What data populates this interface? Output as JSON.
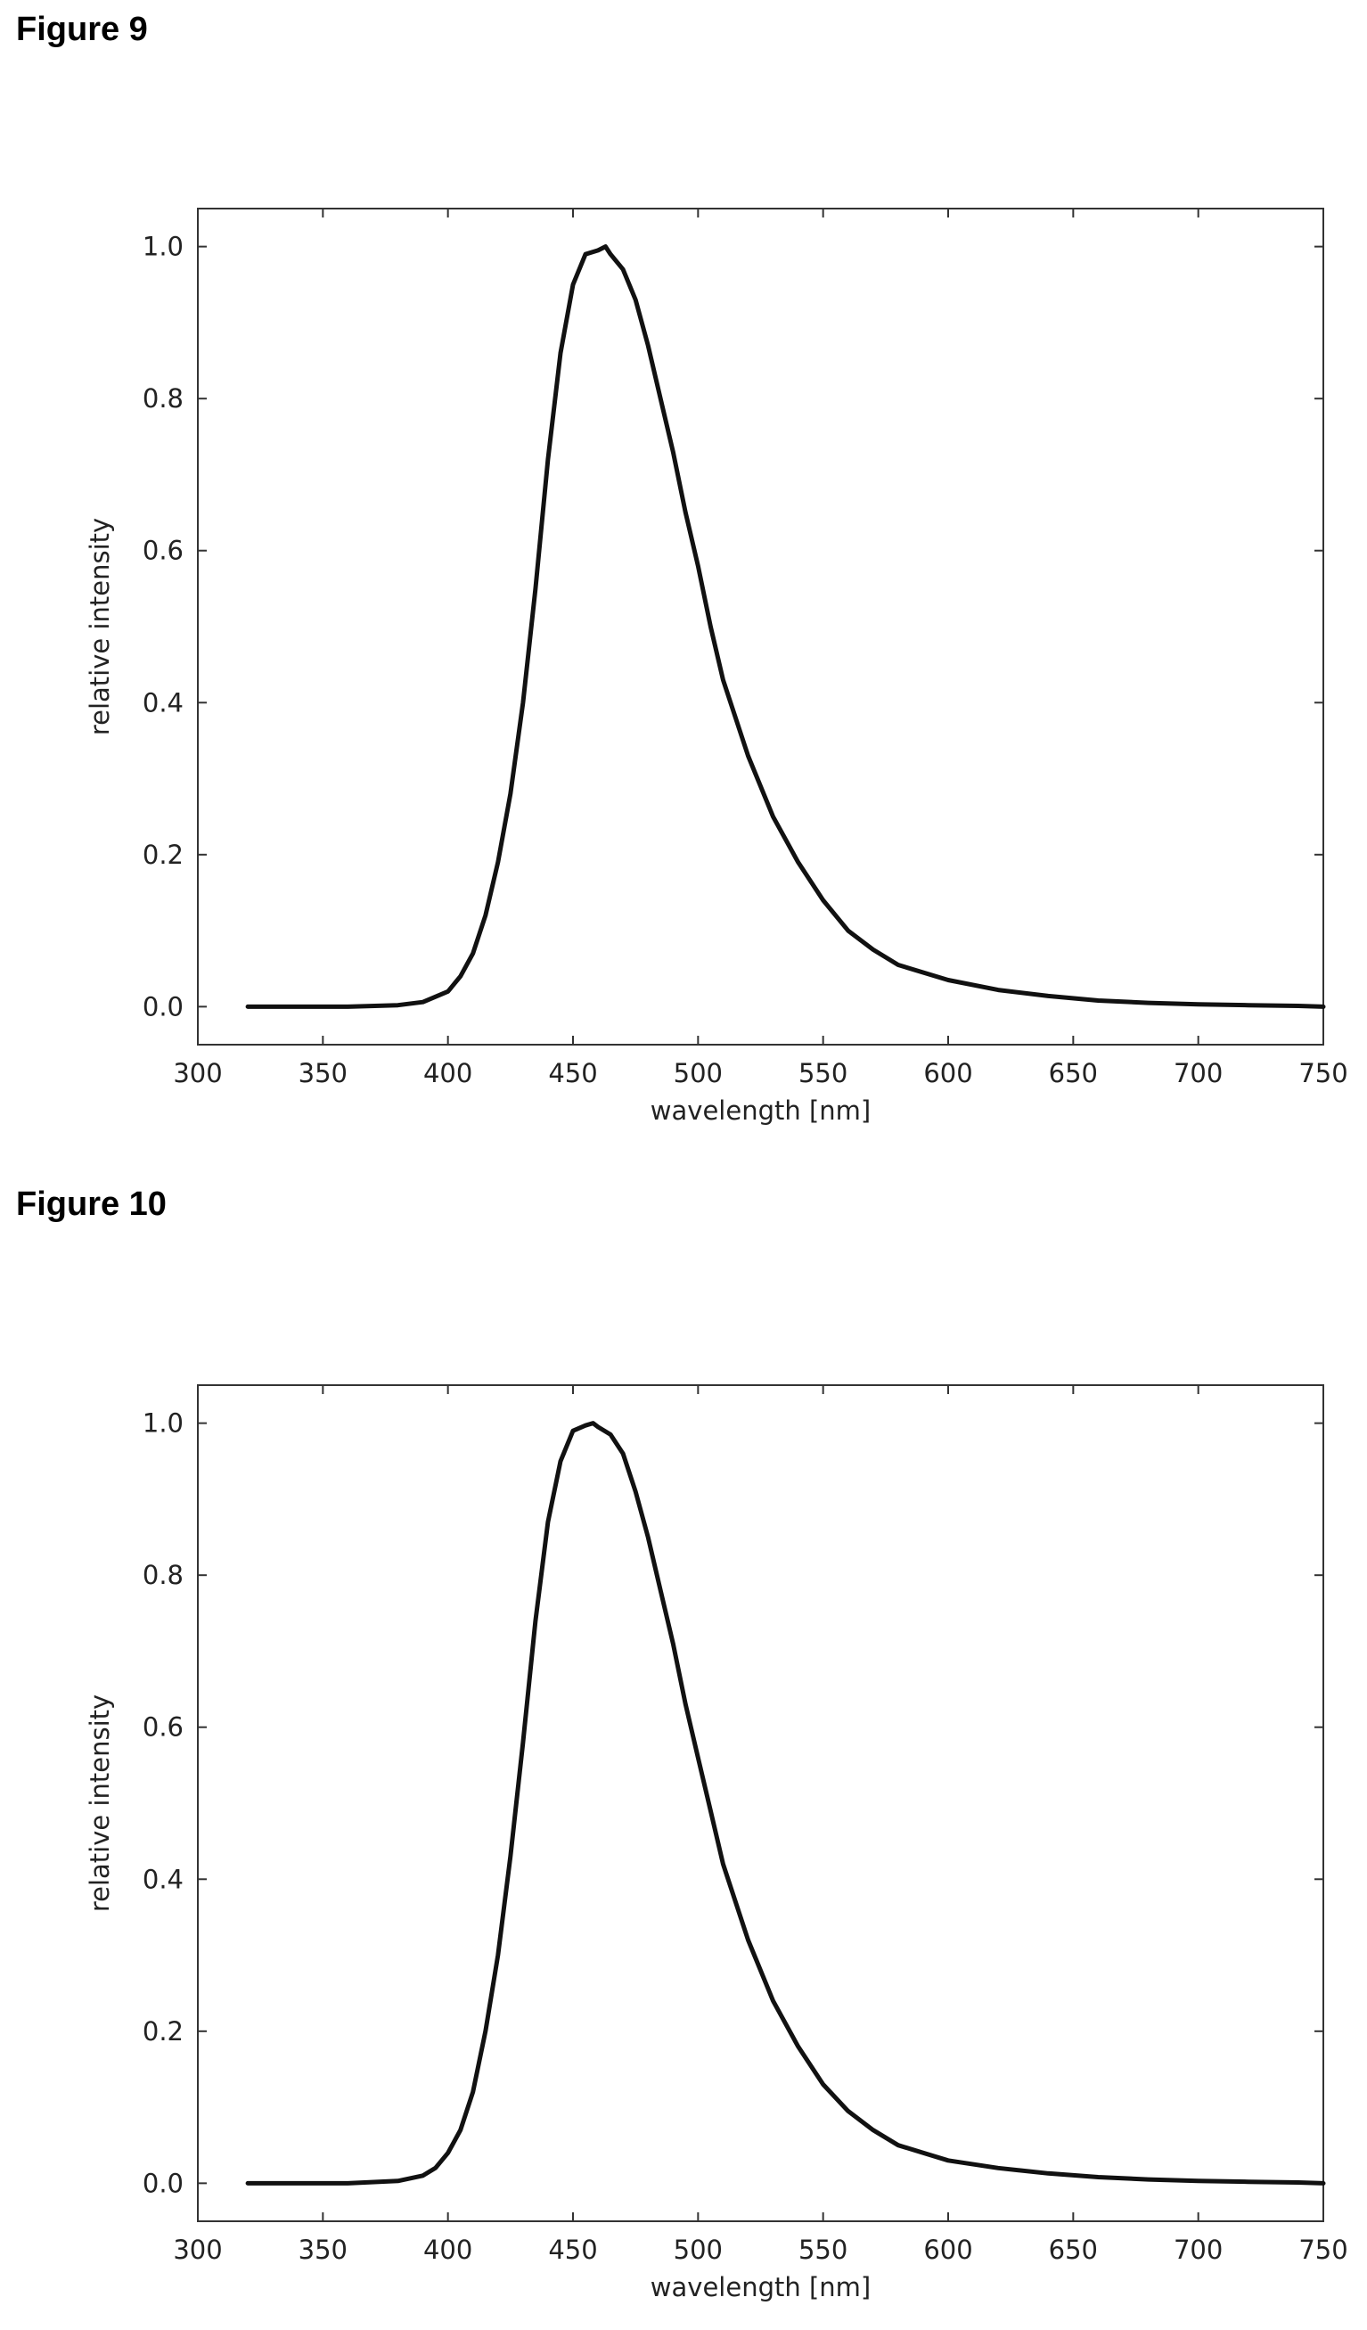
{
  "figures": [
    {
      "label": "Figure 9"
    },
    {
      "label": "Figure 10"
    }
  ],
  "chart_data": [
    {
      "type": "line",
      "title": "",
      "xlabel": "wavelength [nm]",
      "ylabel": "relative intensity",
      "xlim": [
        300,
        750
      ],
      "ylim": [
        -0.05,
        1.05
      ],
      "xticks": [
        "300",
        "350",
        "400",
        "450",
        "500",
        "550",
        "600",
        "650",
        "700",
        "750"
      ],
      "yticks": [
        "0.0",
        "0.2",
        "0.4",
        "0.6",
        "0.8",
        "1.0"
      ],
      "grid": false,
      "color": "#111111",
      "series": [
        {
          "x": [
            320,
            340,
            360,
            380,
            390,
            400,
            405,
            410,
            415,
            420,
            425,
            430,
            435,
            440,
            445,
            450,
            455,
            460,
            463,
            465,
            470,
            475,
            480,
            485,
            490,
            495,
            500,
            505,
            510,
            520,
            530,
            540,
            550,
            560,
            570,
            580,
            600,
            620,
            640,
            660,
            680,
            700,
            720,
            740,
            750
          ],
          "y": [
            0.0,
            0.0,
            0.0,
            0.002,
            0.006,
            0.02,
            0.04,
            0.07,
            0.12,
            0.19,
            0.28,
            0.4,
            0.55,
            0.72,
            0.86,
            0.95,
            0.99,
            0.995,
            1.0,
            0.99,
            0.97,
            0.93,
            0.87,
            0.8,
            0.73,
            0.65,
            0.58,
            0.5,
            0.43,
            0.33,
            0.25,
            0.19,
            0.14,
            0.1,
            0.075,
            0.055,
            0.035,
            0.022,
            0.014,
            0.008,
            0.005,
            0.003,
            0.002,
            0.001,
            0.0
          ]
        }
      ]
    },
    {
      "type": "line",
      "title": "",
      "xlabel": "wavelength [nm]",
      "ylabel": "relative intensity",
      "xlim": [
        300,
        750
      ],
      "ylim": [
        -0.05,
        1.05
      ],
      "xticks": [
        "300",
        "350",
        "400",
        "450",
        "500",
        "550",
        "600",
        "650",
        "700",
        "750"
      ],
      "yticks": [
        "0.0",
        "0.2",
        "0.4",
        "0.6",
        "0.8",
        "1.0"
      ],
      "grid": false,
      "color": "#111111",
      "series": [
        {
          "x": [
            320,
            340,
            360,
            380,
            390,
            395,
            400,
            405,
            410,
            415,
            420,
            425,
            430,
            435,
            440,
            445,
            450,
            455,
            458,
            460,
            465,
            470,
            475,
            480,
            485,
            490,
            495,
            500,
            505,
            510,
            520,
            530,
            540,
            550,
            560,
            570,
            580,
            600,
            620,
            640,
            660,
            680,
            700,
            720,
            740,
            750
          ],
          "y": [
            0.0,
            0.0,
            0.0,
            0.003,
            0.01,
            0.02,
            0.04,
            0.07,
            0.12,
            0.2,
            0.3,
            0.43,
            0.58,
            0.74,
            0.87,
            0.95,
            0.99,
            0.997,
            1.0,
            0.995,
            0.985,
            0.96,
            0.91,
            0.85,
            0.78,
            0.71,
            0.63,
            0.56,
            0.49,
            0.42,
            0.32,
            0.24,
            0.18,
            0.13,
            0.095,
            0.07,
            0.05,
            0.03,
            0.02,
            0.013,
            0.008,
            0.005,
            0.003,
            0.002,
            0.001,
            0.0
          ]
        }
      ]
    }
  ]
}
